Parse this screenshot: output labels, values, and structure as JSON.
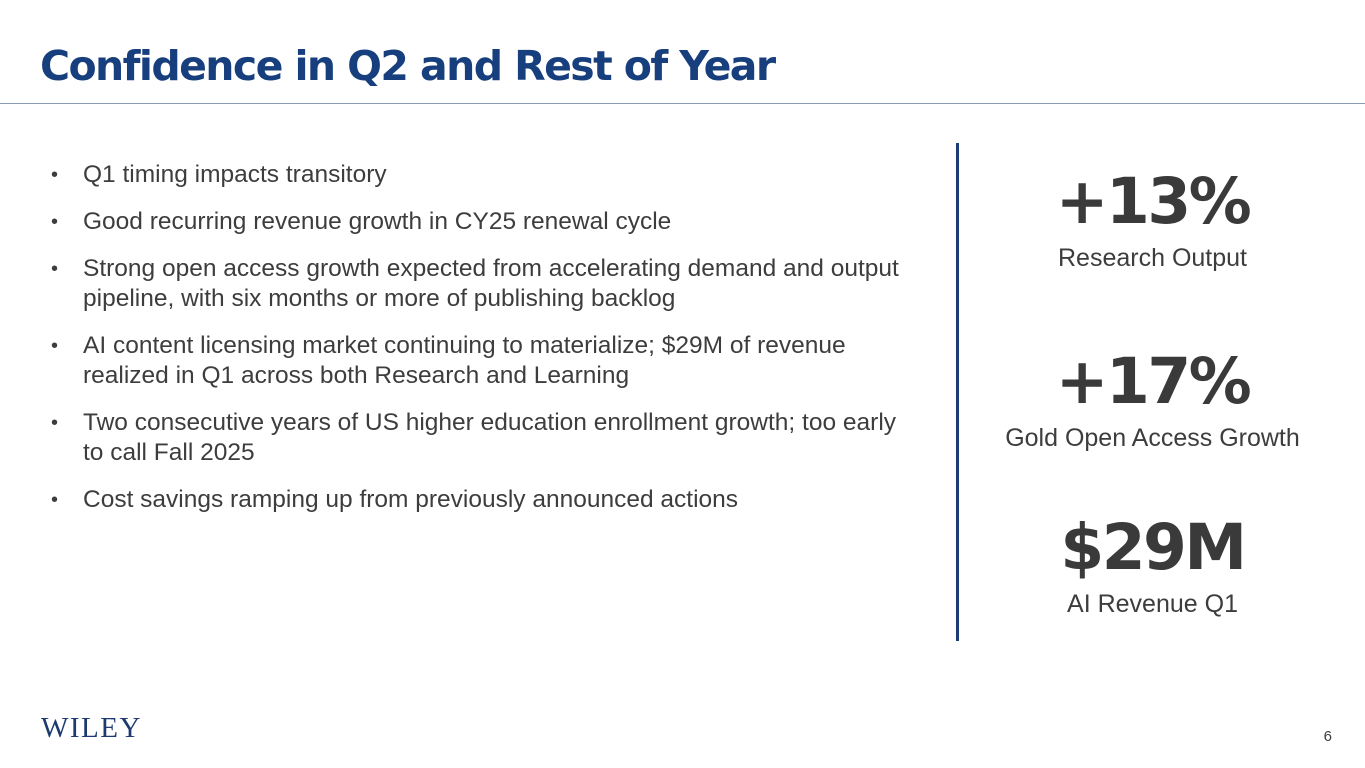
{
  "slide": {
    "title": "Confidence in Q2 and Rest of Year",
    "page_number": "6"
  },
  "bullets": [
    "Q1 timing impacts transitory",
    "Good recurring revenue growth in CY25 renewal cycle",
    "Strong open access growth expected from accelerating demand and output pipeline, with six months or more of publishing backlog",
    "AI content licensing market continuing to materialize; $29M of revenue realized in Q1 across both Research and Learning",
    "Two consecutive years of US higher education enrollment growth; too early to call Fall 2025",
    "Cost savings ramping up from previously announced actions"
  ],
  "stats": [
    {
      "value": "+13%",
      "label": "Research Output"
    },
    {
      "value": "+17%",
      "label": "Gold Open Access Growth"
    },
    {
      "value": "$29M",
      "label": "AI Revenue Q1"
    }
  ],
  "logo": {
    "text": "WILEY"
  },
  "colors": {
    "title": "#173f7d",
    "divider": "#1c3f78",
    "text": "#3d3d3d",
    "stat_value": "#3a3a3a"
  }
}
